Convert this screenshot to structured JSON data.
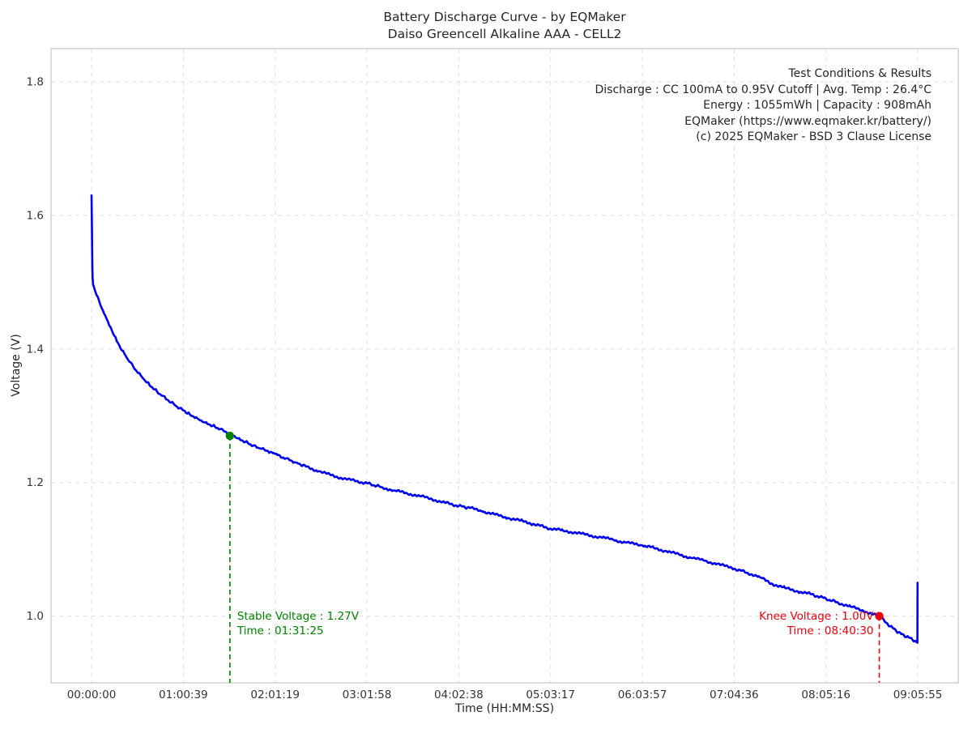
{
  "chart_data": {
    "type": "line",
    "title": "Battery Discharge Curve - by EQMaker",
    "subtitle": "Daiso Greencell Alkaline AAA - CELL2",
    "xlabel": "Time (HH:MM:SS)",
    "ylabel": "Voltage (V)",
    "grid": true,
    "legend": "none",
    "x_tick_labels": [
      "00:00:00",
      "01:00:39",
      "02:01:19",
      "03:01:58",
      "04:02:38",
      "05:03:17",
      "06:03:57",
      "07:04:36",
      "08:05:16",
      "09:05:55"
    ],
    "x_tick_seconds": [
      0,
      3639,
      7279,
      10918,
      14558,
      18197,
      21837,
      25476,
      29116,
      32755
    ],
    "y_tick_labels": [
      "1.0",
      "1.2",
      "1.4",
      "1.6",
      "1.8"
    ],
    "y_ticks": [
      1.0,
      1.2,
      1.4,
      1.6,
      1.8
    ],
    "ylim": [
      0.9,
      1.85
    ],
    "xlim_seconds": [
      -1606,
      34360
    ],
    "colors": {
      "curve": "#0000ee",
      "stable": "#008000",
      "knee": "#e8000b",
      "grid": "#e0e0e0",
      "spine": "#c8c8c8",
      "tick_text": "#333333"
    },
    "series": [
      {
        "name": "CELL2 discharge",
        "color": "#0000ee",
        "points": [
          [
            0,
            1.63
          ],
          [
            6,
            1.612
          ],
          [
            12,
            1.592
          ],
          [
            18,
            1.568
          ],
          [
            25,
            1.543
          ],
          [
            32,
            1.522
          ],
          [
            42,
            1.507
          ],
          [
            60,
            1.497
          ],
          [
            150,
            1.486
          ],
          [
            300,
            1.472
          ],
          [
            450,
            1.458
          ],
          [
            600,
            1.445
          ],
          [
            750,
            1.433
          ],
          [
            900,
            1.42
          ],
          [
            1050,
            1.409
          ],
          [
            1200,
            1.398
          ],
          [
            1350,
            1.39
          ],
          [
            1500,
            1.381
          ],
          [
            1650,
            1.374
          ],
          [
            1800,
            1.366
          ],
          [
            2000,
            1.358
          ],
          [
            2200,
            1.35
          ],
          [
            2400,
            1.343
          ],
          [
            2600,
            1.336
          ],
          [
            2800,
            1.33
          ],
          [
            3000,
            1.324
          ],
          [
            3300,
            1.316
          ],
          [
            3639,
            1.308
          ],
          [
            3900,
            1.302
          ],
          [
            4200,
            1.296
          ],
          [
            4500,
            1.29
          ],
          [
            4800,
            1.285
          ],
          [
            5100,
            1.28
          ],
          [
            5485,
            1.272
          ],
          [
            5800,
            1.266
          ],
          [
            6100,
            1.261
          ],
          [
            6400,
            1.255
          ],
          [
            6700,
            1.251
          ],
          [
            7000,
            1.247
          ],
          [
            7279,
            1.243
          ],
          [
            7700,
            1.236
          ],
          [
            8100,
            1.23
          ],
          [
            8500,
            1.224
          ],
          [
            9000,
            1.217
          ],
          [
            9500,
            1.211
          ],
          [
            10000,
            1.206
          ],
          [
            10500,
            1.202
          ],
          [
            10918,
            1.199
          ],
          [
            11500,
            1.193
          ],
          [
            12000,
            1.188
          ],
          [
            12500,
            1.184
          ],
          [
            13000,
            1.18
          ],
          [
            13500,
            1.175
          ],
          [
            14000,
            1.17
          ],
          [
            14558,
            1.165
          ],
          [
            15000,
            1.162
          ],
          [
            15500,
            1.157
          ],
          [
            16000,
            1.152
          ],
          [
            16500,
            1.147
          ],
          [
            17000,
            1.143
          ],
          [
            17500,
            1.138
          ],
          [
            18197,
            1.131
          ],
          [
            18700,
            1.128
          ],
          [
            19200,
            1.125
          ],
          [
            19700,
            1.121
          ],
          [
            20200,
            1.118
          ],
          [
            20700,
            1.114
          ],
          [
            21200,
            1.11
          ],
          [
            21837,
            1.106
          ],
          [
            22300,
            1.102
          ],
          [
            22800,
            1.097
          ],
          [
            23300,
            1.092
          ],
          [
            23800,
            1.087
          ],
          [
            24300,
            1.083
          ],
          [
            24800,
            1.078
          ],
          [
            25476,
            1.071
          ],
          [
            26000,
            1.065
          ],
          [
            26500,
            1.058
          ],
          [
            27000,
            1.048
          ],
          [
            27500,
            1.042
          ],
          [
            28000,
            1.037
          ],
          [
            28500,
            1.033
          ],
          [
            29116,
            1.026
          ],
          [
            29600,
            1.02
          ],
          [
            30100,
            1.014
          ],
          [
            30600,
            1.008
          ],
          [
            31230,
            1.0
          ],
          [
            31500,
            0.99
          ],
          [
            31800,
            0.981
          ],
          [
            32100,
            0.973
          ],
          [
            32400,
            0.968
          ],
          [
            32650,
            0.963
          ],
          [
            32740,
            0.96
          ],
          [
            32748,
            1.05
          ]
        ]
      }
    ],
    "markers": [
      {
        "name": "stable-voltage",
        "color": "#008000",
        "time_seconds": 5485,
        "time_label": "01:31:25",
        "voltage": 1.27,
        "label_align": "left",
        "label_lines": [
          "Stable Voltage : 1.27V",
          "Time : 01:31:25"
        ]
      },
      {
        "name": "knee-voltage",
        "color": "#e8000b",
        "time_seconds": 31230,
        "time_label": "08:40:30",
        "voltage": 1.0,
        "label_align": "right",
        "label_lines": [
          "Knee Voltage : 1.00V",
          "Time : 08:40:30"
        ]
      }
    ],
    "info_box": {
      "lines": [
        "Test Conditions & Results",
        "Discharge : CC 100mA to 0.95V Cutoff | Avg. Temp : 26.4°C",
        "Energy : 1055mWh | Capacity : 908mAh",
        "EQMaker (https://www.eqmaker.kr/battery/)",
        "(c) 2025 EQMaker - BSD 3 Clause License"
      ]
    }
  }
}
